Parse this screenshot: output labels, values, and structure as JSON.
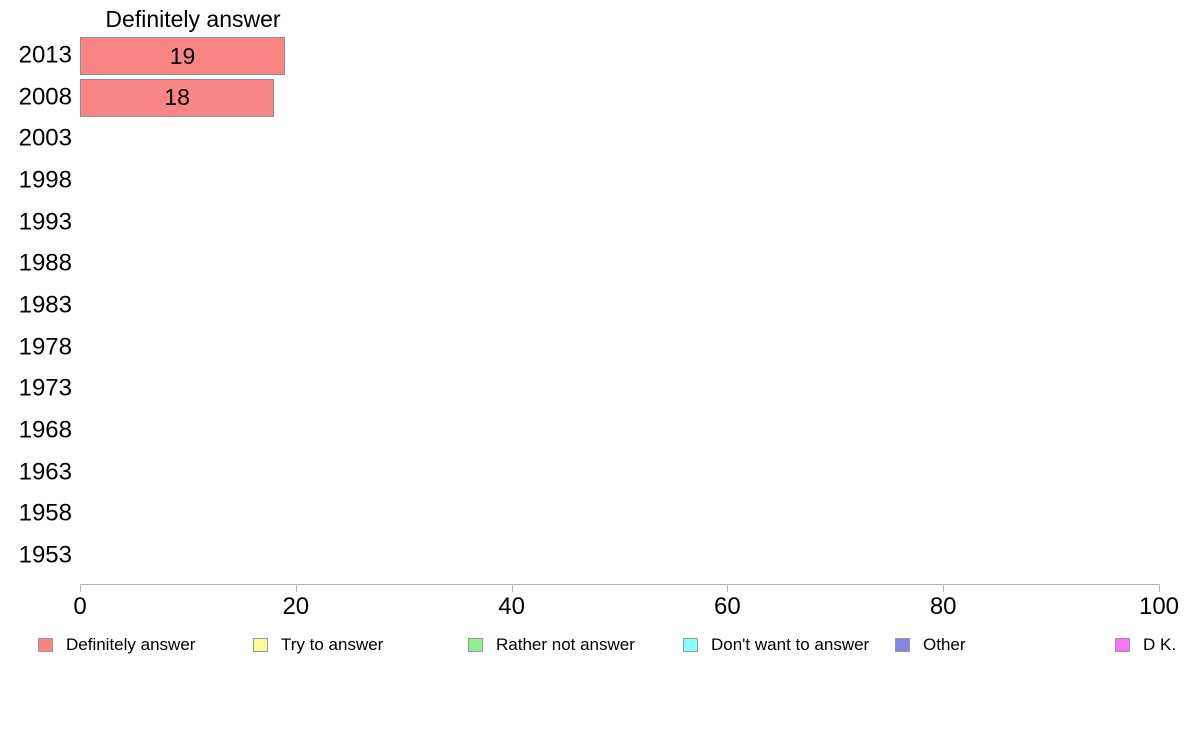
{
  "chart_data": {
    "type": "bar",
    "orientation": "horizontal",
    "title": "Definitely answer",
    "categories": [
      "2013",
      "2008",
      "2003",
      "1998",
      "1993",
      "1988",
      "1983",
      "1978",
      "1973",
      "1968",
      "1963",
      "1958",
      "1953"
    ],
    "series": [
      {
        "name": "Definitely answer",
        "color": "#FA8585",
        "values": [
          19,
          18,
          null,
          null,
          null,
          null,
          null,
          null,
          null,
          null,
          null,
          null,
          null
        ]
      }
    ],
    "bar_labels_shown": true,
    "xlabel": "",
    "ylabel": "",
    "xlim": [
      0,
      100
    ],
    "x_ticks": [
      0,
      20,
      40,
      60,
      80,
      100
    ],
    "grid": false,
    "legend_position": "bottom",
    "legend": [
      {
        "label": "Definitely answer",
        "color": "#FA8585"
      },
      {
        "label": "Try to answer",
        "color": "#FAFA96"
      },
      {
        "label": "Rather not answer",
        "color": "#90EE90"
      },
      {
        "label": "Don't want to answer",
        "color": "#85FFFF"
      },
      {
        "label": "Other",
        "color": "#8484EA"
      },
      {
        "label": "D K.",
        "color": "#FA74FA"
      }
    ]
  }
}
